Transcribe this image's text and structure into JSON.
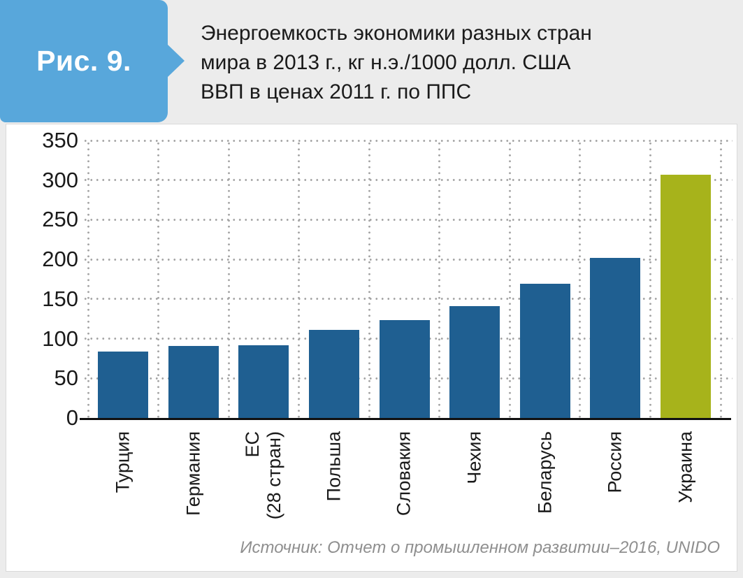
{
  "figure": {
    "label": "Рис. 9.",
    "title": "Энергоемкость экономики разных стран\nмира в 2013 г., кг н.э./1000 долл. США\nВВП в ценах 2011 г. по ППС"
  },
  "source_note": "Источник: Отчет о промышленном развитии–2016, UNIDO",
  "colors": {
    "badge_blue": "#58a7db",
    "bar_blue": "#1f5f91",
    "bar_highlight_green": "#a7b31b",
    "page_background": "#ececec",
    "grid_dot_gray": "#a3a3a3",
    "axis_black": "#111111",
    "source_gray": "#8f8f8f"
  },
  "chart_data": {
    "type": "bar",
    "title": "Энергоемкость экономики разных стран мира в 2013 г., кг н.э./1000 долл. США ВВП в ценах 2011 г. по ППС",
    "categories": [
      "Турция",
      "Германия",
      "ЕС\n(28 стран)",
      "Польша",
      "Словакия",
      "Чехия",
      "Беларусь",
      "Россия",
      "Украина"
    ],
    "values": [
      84,
      91,
      92,
      111,
      123,
      141,
      169,
      202,
      307
    ],
    "xlabel": "",
    "ylabel": "",
    "ylim": [
      0,
      350
    ],
    "yticks": [
      0,
      50,
      100,
      150,
      200,
      250,
      300,
      350
    ],
    "grid": "dotted",
    "legend": "none",
    "bar_color": "#1f5f91",
    "highlight_index": 8,
    "highlight_color": "#a7b31b",
    "source": "Источник: Отчет о промышленном развитии–2016, UNIDO"
  }
}
